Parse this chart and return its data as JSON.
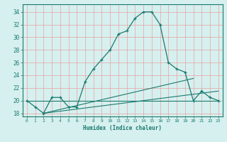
{
  "xlabel": "Humidex (Indice chaleur)",
  "ylabel": "",
  "bg_color": "#d6f0ef",
  "grid_color": "#e8a0a0",
  "line_color": "#1a7a6e",
  "xlim": [
    -0.5,
    23.5
  ],
  "ylim": [
    17.5,
    35.2
  ],
  "xticks": [
    0,
    1,
    2,
    3,
    4,
    5,
    6,
    7,
    8,
    9,
    10,
    11,
    12,
    13,
    14,
    15,
    16,
    17,
    18,
    19,
    20,
    21,
    22,
    23
  ],
  "yticks": [
    18,
    20,
    22,
    24,
    26,
    28,
    30,
    32,
    34
  ],
  "main_x": [
    0,
    1,
    2,
    3,
    4,
    5,
    6,
    7,
    8,
    9,
    10,
    11,
    12,
    13,
    14,
    15,
    16,
    17,
    18,
    19,
    20,
    21,
    22,
    23
  ],
  "main_y": [
    20,
    19,
    18,
    20.5,
    20.5,
    19,
    19,
    23,
    25,
    26.5,
    28,
    30.5,
    31,
    33,
    34,
    34,
    32,
    26,
    25,
    24.5,
    20,
    21.5,
    20.5,
    20
  ],
  "line1_x": [
    0,
    23
  ],
  "line1_y": [
    20.0,
    20.0
  ],
  "line2_x": [
    2,
    23
  ],
  "line2_y": [
    18.0,
    21.5
  ],
  "line3_x": [
    2,
    20
  ],
  "line3_y": [
    18.0,
    23.5
  ]
}
